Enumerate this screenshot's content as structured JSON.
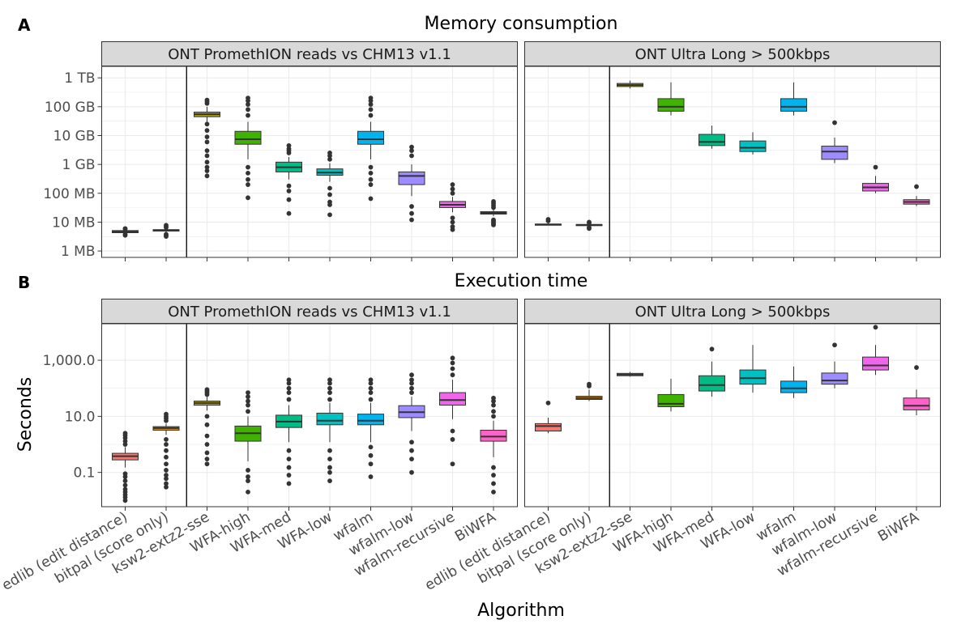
{
  "figure": {
    "x_axis_title": "Algorithm",
    "strip_labels": [
      "ONT PromethION reads vs CHM13 v1.1",
      "ONT Ultra Long > 500kbps"
    ]
  },
  "colors": {
    "edlib (edit distance)": "#F8766D",
    "bitpal (score only)": "#DB8E00",
    "ksw2-extz2-sse": "#AEA200",
    "WFA-high": "#3FB300",
    "WFA-med": "#00BD85",
    "WFA-low": "#00C1C1",
    "wfalm": "#00B4F0",
    "wfalm-low": "#9D8CFF",
    "wfalm-recursive": "#F066EA",
    "BiWFA": "#FF61C9",
    "strip_bg": "#D9D9D9",
    "grid": "#EBEBEB",
    "outlier": "#333333"
  },
  "chart_data": [
    {
      "type": "box",
      "panel_letter": "A",
      "title": "Memory consumption",
      "xlabel": "Algorithm",
      "ylabel": "",
      "yscale": "log10",
      "ylim": [
        0.6,
        2500000
      ],
      "y_ticks": [
        1,
        10,
        100,
        1000,
        10000,
        100000,
        1000000
      ],
      "y_tick_labels": [
        "1 MB",
        "10 MB",
        "100 MB",
        "1 GB",
        "10 GB",
        "100 GB",
        "1 TB"
      ],
      "categories": [
        "edlib (edit distance)",
        "bitpal (score only)",
        "ksw2-extz2-sse",
        "WFA-high",
        "WFA-med",
        "WFA-low",
        "wfalm",
        "wfalm-low",
        "wfalm-recursive",
        "BiWFA"
      ],
      "facets": [
        {
          "label": "ONT PromethION reads vs CHM13 v1.1",
          "boxes": [
            {
              "q1": 4.3,
              "median": 4.7,
              "q3": 5.1,
              "wlo": 4.0,
              "whi": 5.5,
              "outliers": [
                3.5,
                3.8,
                5.8,
                6.0
              ]
            },
            {
              "q1": 4.9,
              "median": 5.2,
              "q3": 5.5,
              "wlo": 4.6,
              "whi": 5.9,
              "outliers": [
                3.2,
                3.5,
                3.8,
                6.5,
                7.2,
                7.8
              ]
            },
            {
              "q1": 45000,
              "median": 55000,
              "q3": 65000,
              "wlo": 30000,
              "whi": 100000,
              "outliers": [
                400,
                600,
                800,
                1200,
                2000,
                3000,
                6000,
                9000,
                15000,
                25000,
                130000,
                150000,
                170000
              ]
            },
            {
              "q1": 5000,
              "median": 7500,
              "q3": 14000,
              "wlo": 1500,
              "whi": 30000,
              "outliers": [
                70,
                200,
                300,
                500,
                800,
                50000,
                80000,
                120000,
                160000,
                200000
              ]
            },
            {
              "q1": 550,
              "median": 800,
              "q3": 1200,
              "wlo": 300,
              "whi": 1800,
              "outliers": [
                20,
                60,
                120,
                180,
                2500,
                3000,
                3500,
                4500
              ]
            },
            {
              "q1": 420,
              "median": 520,
              "q3": 700,
              "wlo": 250,
              "whi": 1100,
              "outliers": [
                18,
                40,
                50,
                90,
                150,
                1500,
                2000,
                2500
              ]
            },
            {
              "q1": 5000,
              "median": 7500,
              "q3": 14000,
              "wlo": 1500,
              "whi": 30000,
              "outliers": [
                65,
                200,
                300,
                500,
                800,
                50000,
                80000,
                120000,
                160000,
                200000
              ]
            },
            {
              "q1": 200,
              "median": 400,
              "q3": 550,
              "wlo": 80,
              "whi": 1000,
              "outliers": [
                12,
                20,
                35,
                2000,
                3000,
                4000
              ]
            },
            {
              "q1": 32,
              "median": 40,
              "q3": 52,
              "wlo": 22,
              "whi": 75,
              "outliers": [
                5.5,
                7,
                10,
                14,
                100,
                140,
                200
              ]
            },
            {
              "q1": 19,
              "median": 21,
              "q3": 23,
              "wlo": 16,
              "whi": 28,
              "outliers": [
                8,
                9,
                10,
                11,
                12,
                32,
                38,
                45,
                52
              ]
            }
          ]
        },
        {
          "label": "ONT Ultra Long > 500kbps",
          "boxes": [
            {
              "q1": 8.0,
              "median": 8.3,
              "q3": 8.6,
              "wlo": 7.7,
              "whi": 9.2,
              "outliers": [
                11,
                12.5
              ]
            },
            {
              "q1": 7.7,
              "median": 8.0,
              "q3": 8.3,
              "wlo": 7.2,
              "whi": 8.8,
              "outliers": [
                6.0,
                6.5,
                9.5,
                10
              ]
            },
            {
              "q1": 500000,
              "median": 560000,
              "q3": 640000,
              "wlo": 430000,
              "whi": 800000,
              "outliers": []
            },
            {
              "q1": 70000,
              "median": 100000,
              "q3": 190000,
              "wlo": 50000,
              "whi": 700000,
              "outliers": []
            },
            {
              "q1": 4500,
              "median": 6000,
              "q3": 11000,
              "wlo": 3500,
              "whi": 22000,
              "outliers": []
            },
            {
              "q1": 2800,
              "median": 3800,
              "q3": 6500,
              "wlo": 2200,
              "whi": 13000,
              "outliers": []
            },
            {
              "q1": 70000,
              "median": 100000,
              "q3": 190000,
              "wlo": 50000,
              "whi": 700000,
              "outliers": []
            },
            {
              "q1": 1500,
              "median": 2800,
              "q3": 4300,
              "wlo": 1100,
              "whi": 8500,
              "outliers": [
                28000
              ]
            },
            {
              "q1": 120,
              "median": 160,
              "q3": 220,
              "wlo": 100,
              "whi": 400,
              "outliers": [
                800
              ]
            },
            {
              "q1": 42,
              "median": 50,
              "q3": 60,
              "wlo": 36,
              "whi": 80,
              "outliers": [
                170
              ]
            }
          ]
        }
      ]
    },
    {
      "type": "box",
      "panel_letter": "B",
      "title": "Execution time",
      "xlabel": "Algorithm",
      "ylabel": "Seconds",
      "yscale": "log10",
      "ylim": [
        0.006,
        20000
      ],
      "y_ticks": [
        0.1,
        10,
        1000
      ],
      "y_tick_labels": [
        "0.1",
        "10.0",
        "1,000.0"
      ],
      "categories": [
        "edlib (edit distance)",
        "bitpal (score only)",
        "ksw2-extz2-sse",
        "WFA-high",
        "WFA-med",
        "WFA-low",
        "wfalm",
        "wfalm-low",
        "wfalm-recursive",
        "BiWFA"
      ],
      "facets": [
        {
          "label": "ONT PromethION reads vs CHM13 v1.1",
          "boxes": [
            {
              "q1": 0.28,
              "median": 0.38,
              "q3": 0.48,
              "wlo": 0.15,
              "whi": 0.8,
              "outliers": [
                0.01,
                0.013,
                0.016,
                0.02,
                0.025,
                0.035,
                0.05,
                0.07,
                0.09,
                1.0,
                1.3,
                1.7,
                2.1,
                2.5
              ]
            },
            {
              "q1": 3.2,
              "median": 3.8,
              "q3": 4.3,
              "wlo": 2.2,
              "whi": 5.5,
              "outliers": [
                0.03,
                0.04,
                0.06,
                0.08,
                0.12,
                0.2,
                0.35,
                0.6,
                1.0,
                1.5,
                7,
                8.5,
                10,
                12
              ]
            },
            {
              "q1": 25,
              "median": 30,
              "q3": 35,
              "wlo": 16,
              "whi": 50,
              "outliers": [
                0.2,
                0.3,
                0.5,
                1.0,
                2.0,
                5,
                10,
                60,
                70,
                80,
                90
              ]
            },
            {
              "q1": 1.3,
              "median": 2.5,
              "q3": 4.5,
              "wlo": 0.25,
              "whi": 10,
              "outliers": [
                0.02,
                0.05,
                0.07,
                0.12,
                15,
                25,
                35,
                50,
                70
              ]
            },
            {
              "q1": 4,
              "median": 6.5,
              "q3": 11,
              "wlo": 1.2,
              "whi": 25,
              "outliers": [
                0.04,
                0.08,
                0.15,
                0.3,
                0.6,
                40,
                70,
                100,
                150,
                200
              ]
            },
            {
              "q1": 5,
              "median": 7,
              "q3": 13,
              "wlo": 1.2,
              "whi": 30,
              "outliers": [
                0.05,
                0.1,
                0.15,
                0.3,
                0.6,
                40,
                70,
                100,
                150,
                200
              ]
            },
            {
              "q1": 5,
              "median": 7,
              "q3": 12,
              "wlo": 1.2,
              "whi": 30,
              "outliers": [
                0.07,
                0.2,
                0.4,
                0.8,
                40,
                70,
                100,
                150,
                200
              ]
            },
            {
              "q1": 9,
              "median": 14,
              "q3": 24,
              "wlo": 3,
              "whi": 50,
              "outliers": [
                0.1,
                0.3,
                0.6,
                1.2,
                70,
                100,
                150,
                200,
                300
              ]
            },
            {
              "q1": 25,
              "median": 38,
              "q3": 70,
              "wlo": 8,
              "whi": 200,
              "outliers": [
                0.2,
                1.5,
                3,
                300,
                500,
                800,
                1200
              ]
            },
            {
              "q1": 1.3,
              "median": 1.9,
              "q3": 3.2,
              "wlo": 0.35,
              "whi": 7,
              "outliers": [
                0.02,
                0.04,
                0.08,
                0.15,
                10,
                15,
                25,
                35,
                45
              ]
            }
          ]
        },
        {
          "label": "ONT Ultra Long > 500kbps",
          "boxes": [
            {
              "q1": 3.0,
              "median": 4.5,
              "q3": 5.5,
              "wlo": 2.5,
              "whi": 9,
              "outliers": [
                30
              ]
            },
            {
              "q1": 40,
              "median": 45,
              "q3": 52,
              "wlo": 35,
              "whi": 90,
              "outliers": [
                120,
                140
              ]
            },
            {
              "q1": 280,
              "median": 310,
              "q3": 340,
              "wlo": 260,
              "whi": 380,
              "outliers": []
            },
            {
              "q1": 22,
              "median": 28,
              "q3": 60,
              "wlo": 15,
              "whi": 220,
              "outliers": []
            },
            {
              "q1": 80,
              "median": 130,
              "q3": 280,
              "wlo": 50,
              "whi": 900,
              "outliers": [
                2500
              ]
            },
            {
              "q1": 140,
              "median": 230,
              "q3": 450,
              "wlo": 70,
              "whi": 3500,
              "outliers": []
            },
            {
              "q1": 70,
              "median": 100,
              "q3": 180,
              "wlo": 45,
              "whi": 600,
              "outliers": []
            },
            {
              "q1": 140,
              "median": 190,
              "q3": 350,
              "wlo": 100,
              "whi": 900,
              "outliers": [
                3500
              ]
            },
            {
              "q1": 450,
              "median": 650,
              "q3": 1300,
              "wlo": 300,
              "whi": 3500,
              "outliers": [
                15000
              ]
            },
            {
              "q1": 17,
              "median": 24,
              "q3": 45,
              "wlo": 11,
              "whi": 90,
              "outliers": [
                550
              ]
            }
          ]
        }
      ]
    }
  ]
}
